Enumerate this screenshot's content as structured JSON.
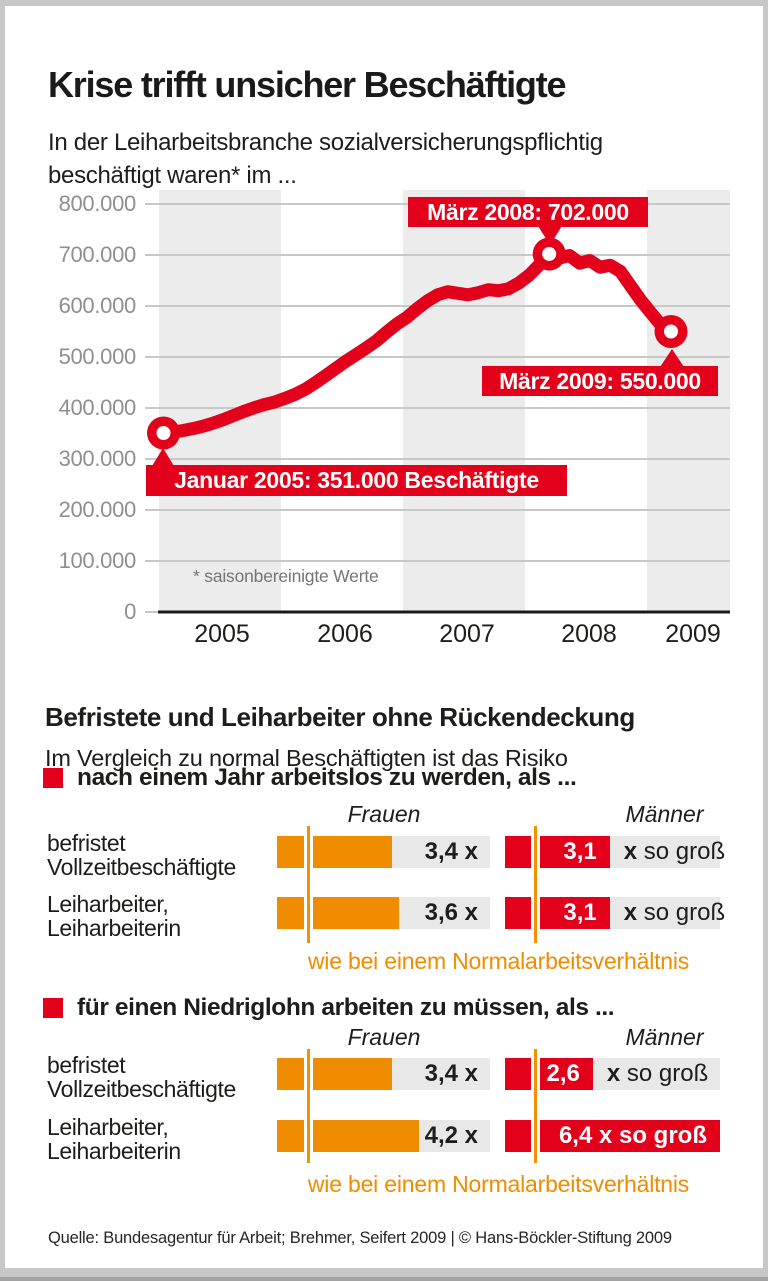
{
  "title": "Krise trifft unsicher Beschäftigte",
  "subtitle": {
    "line1": "In der Leiharbeitsbranche sozialversicherungspflichtig",
    "line2": "beschäftigt waren* im ..."
  },
  "chart_data": {
    "type": "line",
    "title": "In der Leiharbeitsbranche sozialversicherungspflichtig beschäftigt waren* im ...",
    "x_unit": "month",
    "x_start": "Januar 2005",
    "x_end": "März 2009",
    "x_year_labels": [
      "2005",
      "2006",
      "2007",
      "2008",
      "2009"
    ],
    "ylim": [
      0,
      800000
    ],
    "y_tick_labels": [
      "0",
      "100.000",
      "200.000",
      "300.000",
      "400.000",
      "500.000",
      "600.000",
      "700.000",
      "800.000"
    ],
    "grid": "horizontal",
    "legend": "none",
    "series": [
      {
        "name": "Sozialversicherungspflichtig Beschäftigte in der Leiharbeitsbranche",
        "color": "#e2001a",
        "monthly_values_thousands": [
          351,
          353,
          356,
          360,
          365,
          371,
          378,
          386,
          394,
          401,
          407,
          412,
          419,
          427,
          437,
          450,
          464,
          478,
          492,
          505,
          518,
          532,
          549,
          565,
          578,
          595,
          610,
          622,
          628,
          625,
          622,
          626,
          632,
          630,
          634,
          645,
          660,
          680,
          702,
          694,
          699,
          684,
          689,
          676,
          680,
          668,
          640,
          612,
          587,
          563,
          550
        ]
      }
    ],
    "annotations": [
      {
        "label": "Januar 2005: 351.000 Beschäftigte",
        "month_index": 0,
        "value": 351000
      },
      {
        "label": "März 2008: 702.000",
        "month_index": 38,
        "value": 702000
      },
      {
        "label": "März 2009: 550.000",
        "month_index": 50,
        "value": 550000
      }
    ],
    "footnote": "* saisonbereinigte Werte"
  },
  "risk_chart": {
    "heading": "Befristete und Leiharbeiter ohne Rückendeckung",
    "intro": "Im Vergleich zu normal Beschäftigten ist das Risiko",
    "col_headers": {
      "frauen": "Frauen",
      "maenner": "Männer"
    },
    "reference_value": 1,
    "sections": [
      {
        "bullet": "nach einem Jahr arbeitslos zu werden, als ...",
        "caption": "wie bei einem Normalarbeitsverhältnis",
        "rows": [
          {
            "label1": "befristet",
            "label2": "Vollzeitbeschäftigte",
            "frauen": 3.4,
            "frauen_label": "3,4 x",
            "maenner": 3.1,
            "maenner_label": "3,1",
            "suffix_bold": "x",
            "suffix_rest": " so groß"
          },
          {
            "label1": "Leiharbeiter,",
            "label2": "Leiharbeiterin",
            "frauen": 3.6,
            "frauen_label": "3,6 x",
            "maenner": 3.1,
            "maenner_label": "3,1",
            "suffix_bold": "x",
            "suffix_rest": " so groß"
          }
        ]
      },
      {
        "bullet": "für einen Niedriglohn arbeiten zu müssen, als ...",
        "caption": "wie bei einem Normalarbeitsverhältnis",
        "rows": [
          {
            "label1": "befristet",
            "label2": "Vollzeitbeschäftigte",
            "frauen": 3.4,
            "frauen_label": "3,4 x",
            "maenner": 2.6,
            "maenner_label": "2,6",
            "suffix_bold": "x",
            "suffix_rest": " so groß"
          },
          {
            "label1": "Leiharbeiter,",
            "label2": "Leiharbeiterin",
            "frauen": 4.2,
            "frauen_label": "4,2 x",
            "maenner": 6.4,
            "maenner_label": "6,4 x so groß",
            "suffix_bold": "",
            "suffix_rest": ""
          }
        ]
      }
    ]
  },
  "footer": "Quelle: Bundesagentur für Arbeit; Brehmer, Seifert 2009 | © Hans-Böckler-Stiftung 2009",
  "colors": {
    "red": "#e2001a",
    "orange": "#ef8c00",
    "reference_line": "#f39200",
    "bar_track": "#e8e8e8",
    "year_band": "#ececec",
    "grid": "#c8c8c8",
    "axis": "#1a1a1a"
  }
}
